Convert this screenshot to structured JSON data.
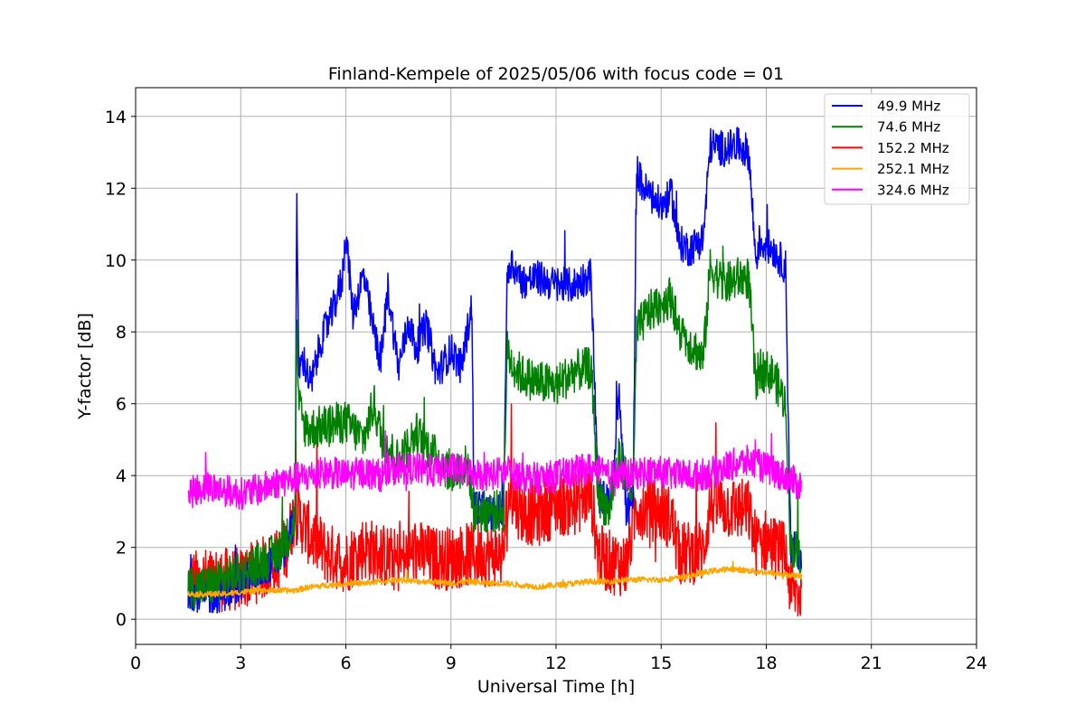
{
  "chart_data": {
    "type": "line",
    "title": "Finland-Kempele of 2025/05/06 with focus code = 01",
    "xlabel": "Universal Time [h]",
    "ylabel": "Y-factor [dB]",
    "xlim": [
      0,
      24
    ],
    "ylim": [
      -0.7,
      14.8
    ],
    "xticks": [
      0,
      3,
      6,
      9,
      12,
      15,
      18,
      21,
      24
    ],
    "xtick_labels": [
      "0",
      "3",
      "6",
      "9",
      "12",
      "15",
      "18",
      "21",
      "24"
    ],
    "yticks": [
      0,
      2,
      4,
      6,
      8,
      10,
      12,
      14
    ],
    "ytick_labels": [
      "0",
      "2",
      "4",
      "6",
      "8",
      "10",
      "12",
      "14"
    ],
    "grid": true,
    "legend_position": "top-right",
    "series": [
      {
        "name": " 49.9 MHz",
        "color": "#0000ff",
        "noise": 0.5,
        "x": [
          1.5,
          2.0,
          2.5,
          3.0,
          3.5,
          4.0,
          4.3,
          4.55,
          4.6,
          4.65,
          4.8,
          5.0,
          5.3,
          5.6,
          5.9,
          6.0,
          6.2,
          6.5,
          6.8,
          7.0,
          7.2,
          7.5,
          7.8,
          8.0,
          8.3,
          8.6,
          9.0,
          9.3,
          9.6,
          9.65,
          10.0,
          10.5,
          10.6,
          10.7,
          11.0,
          11.5,
          12.0,
          12.5,
          13.0,
          13.2,
          13.3,
          13.6,
          13.8,
          14.0,
          14.2,
          14.3,
          14.5,
          15.0,
          15.3,
          15.5,
          15.8,
          16.2,
          16.4,
          16.8,
          17.2,
          17.5,
          17.7,
          17.8,
          18.2,
          18.55,
          18.7,
          19.0
        ],
        "y": [
          0.8,
          0.6,
          0.7,
          1.0,
          1.3,
          1.6,
          2.0,
          2.8,
          12.0,
          7.0,
          7.2,
          6.5,
          7.8,
          8.5,
          9.5,
          10.8,
          8.5,
          9.6,
          8.0,
          7.2,
          9.2,
          7.0,
          8.3,
          7.5,
          8.2,
          6.8,
          7.5,
          7.0,
          8.8,
          3.2,
          3.0,
          3.0,
          9.5,
          10.0,
          9.4,
          9.5,
          9.3,
          9.3,
          9.6,
          3.5,
          3.3,
          3.5,
          6.5,
          3.0,
          3.3,
          12.5,
          12.0,
          11.5,
          11.8,
          10.5,
          10.3,
          10.6,
          13.2,
          13.1,
          13.2,
          13.0,
          10.0,
          10.5,
          10.3,
          9.8,
          2.0,
          1.8
        ]
      },
      {
        "name": " 74.6 MHz",
        "color": "#008000",
        "noise": 0.6,
        "x": [
          1.5,
          2.0,
          3.0,
          4.0,
          4.3,
          4.55,
          4.6,
          4.65,
          4.8,
          5.0,
          5.5,
          6.0,
          6.5,
          6.8,
          7.0,
          7.5,
          8.0,
          8.5,
          9.0,
          9.5,
          9.65,
          10.0,
          10.5,
          10.6,
          10.7,
          11.0,
          11.5,
          12.0,
          12.5,
          13.0,
          13.2,
          13.5,
          13.8,
          14.2,
          14.3,
          14.6,
          15.0,
          15.3,
          15.5,
          16.0,
          16.2,
          16.4,
          16.8,
          17.2,
          17.5,
          17.7,
          17.8,
          18.2,
          18.55,
          18.7,
          19.0
        ],
        "y": [
          0.9,
          0.9,
          1.3,
          1.8,
          2.2,
          2.8,
          8.5,
          6.0,
          5.4,
          5.3,
          5.4,
          5.5,
          5.0,
          6.0,
          5.1,
          4.4,
          5.2,
          4.6,
          4.1,
          4.3,
          3.0,
          3.0,
          3.0,
          7.5,
          7.2,
          6.8,
          6.6,
          6.5,
          6.9,
          7.0,
          3.5,
          3.0,
          4.5,
          3.5,
          8.0,
          8.5,
          8.8,
          9.0,
          8.0,
          7.5,
          7.2,
          9.8,
          9.3,
          9.5,
          9.5,
          6.5,
          7.0,
          6.8,
          6.0,
          2.0,
          1.8
        ]
      },
      {
        "name": " 152.2 MHz",
        "color": "#ff0000",
        "noise": 0.9,
        "x": [
          1.5,
          2.0,
          3.0,
          4.0,
          4.3,
          4.55,
          5.0,
          5.5,
          6.0,
          6.5,
          7.0,
          7.5,
          8.0,
          8.5,
          9.0,
          9.5,
          10.0,
          10.5,
          10.6,
          10.7,
          11.0,
          11.5,
          12.0,
          12.5,
          13.0,
          13.2,
          13.5,
          14.0,
          14.3,
          14.5,
          15.0,
          15.3,
          15.5,
          16.2,
          16.4,
          17.0,
          17.5,
          17.7,
          18.0,
          18.55,
          18.7,
          19.0
        ],
        "y": [
          1.0,
          1.1,
          1.1,
          1.6,
          2.0,
          3.0,
          2.3,
          1.8,
          1.6,
          2.0,
          1.8,
          1.6,
          1.9,
          1.7,
          1.7,
          1.8,
          1.8,
          1.8,
          3.2,
          3.5,
          3.0,
          2.9,
          3.2,
          3.2,
          3.5,
          1.8,
          1.6,
          1.5,
          3.2,
          3.1,
          3.0,
          2.8,
          1.8,
          1.9,
          3.2,
          3.1,
          3.0,
          2.1,
          2.2,
          1.8,
          0.8,
          0.7
        ]
      },
      {
        "name": " 252.1 MHz",
        "color": "#ffa500",
        "noise": 0.08,
        "x": [
          1.5,
          2.5,
          3.5,
          4.5,
          5.0,
          5.5,
          6.0,
          6.5,
          7.0,
          7.5,
          8.0,
          8.5,
          9.0,
          9.5,
          10.0,
          10.5,
          11.0,
          11.5,
          12.0,
          12.5,
          13.0,
          13.5,
          14.0,
          14.5,
          15.0,
          15.5,
          16.0,
          16.5,
          17.0,
          17.5,
          18.0,
          18.5,
          19.0
        ],
        "y": [
          0.7,
          0.7,
          0.8,
          0.8,
          0.9,
          0.95,
          1.0,
          1.0,
          1.05,
          1.1,
          1.05,
          1.05,
          1.0,
          1.05,
          1.0,
          1.0,
          0.95,
          0.9,
          0.95,
          1.0,
          1.05,
          1.05,
          1.1,
          1.1,
          1.1,
          1.15,
          1.25,
          1.35,
          1.4,
          1.35,
          1.3,
          1.25,
          1.2
        ]
      },
      {
        "name": " 324.6 MHz",
        "color": "#ff00ff",
        "noise": 0.45,
        "x": [
          1.5,
          2.0,
          2.5,
          3.0,
          3.5,
          4.0,
          4.5,
          5.0,
          5.5,
          6.0,
          6.5,
          7.0,
          7.5,
          8.0,
          8.5,
          9.0,
          9.5,
          10.0,
          10.5,
          11.0,
          11.5,
          12.0,
          12.5,
          13.0,
          13.5,
          14.0,
          14.5,
          15.0,
          15.5,
          16.0,
          16.5,
          17.0,
          17.5,
          18.0,
          18.5,
          19.0
        ],
        "y": [
          3.5,
          3.7,
          3.6,
          3.5,
          3.6,
          3.8,
          3.9,
          4.0,
          4.1,
          4.0,
          4.1,
          4.0,
          4.2,
          4.2,
          4.1,
          4.2,
          4.1,
          4.0,
          4.1,
          4.0,
          3.9,
          4.0,
          4.1,
          4.2,
          4.0,
          4.0,
          4.1,
          4.1,
          4.0,
          4.0,
          4.1,
          4.3,
          4.4,
          4.2,
          4.0,
          3.7
        ]
      }
    ]
  }
}
